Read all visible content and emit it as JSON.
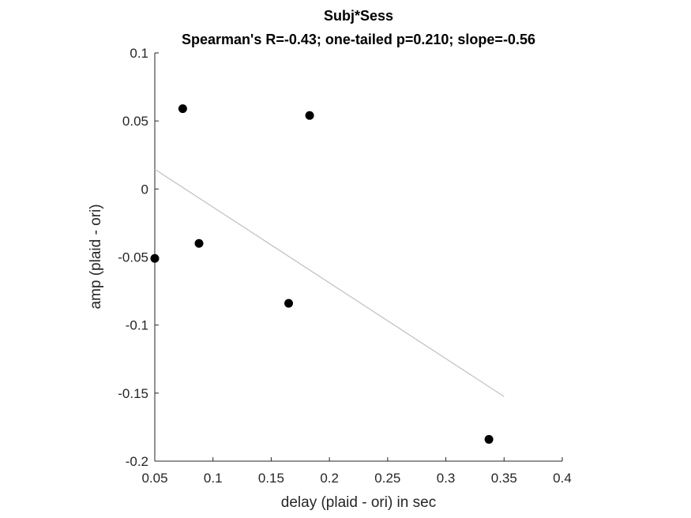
{
  "chart_data": {
    "type": "scatter",
    "title": "Subj*Sess",
    "subtitle": "Spearman's R=-0.43; one-tailed p=0.210; slope=-0.56",
    "xlabel": "delay (plaid - ori) in sec",
    "ylabel": "amp (plaid - ori)",
    "xlim": [
      0.05,
      0.4
    ],
    "ylim": [
      -0.2,
      0.1
    ],
    "xticks": [
      0.05,
      0.1,
      0.15,
      0.2,
      0.25,
      0.3,
      0.35,
      0.4
    ],
    "xtick_labels": [
      "0.05",
      "0.1",
      "0.15",
      "0.2",
      "0.25",
      "0.3",
      "0.35",
      "0.4"
    ],
    "yticks": [
      -0.2,
      -0.15,
      -0.1,
      -0.05,
      0,
      0.05,
      0.1
    ],
    "ytick_labels": [
      "-0.2",
      "-0.15",
      "-0.1",
      "-0.05",
      "0",
      "0.05",
      "0.1"
    ],
    "grid": false,
    "points": [
      {
        "x": 0.05,
        "y": -0.051
      },
      {
        "x": 0.074,
        "y": 0.059
      },
      {
        "x": 0.088,
        "y": -0.04
      },
      {
        "x": 0.165,
        "y": -0.084
      },
      {
        "x": 0.183,
        "y": 0.054
      },
      {
        "x": 0.337,
        "y": -0.184
      }
    ],
    "fit_line": {
      "x": [
        0.05,
        0.35
      ],
      "y": [
        0.0145,
        -0.1525
      ]
    },
    "colors": {
      "points": "#000000",
      "fit_line": "#c0c0c0",
      "axes": "#262626"
    }
  }
}
